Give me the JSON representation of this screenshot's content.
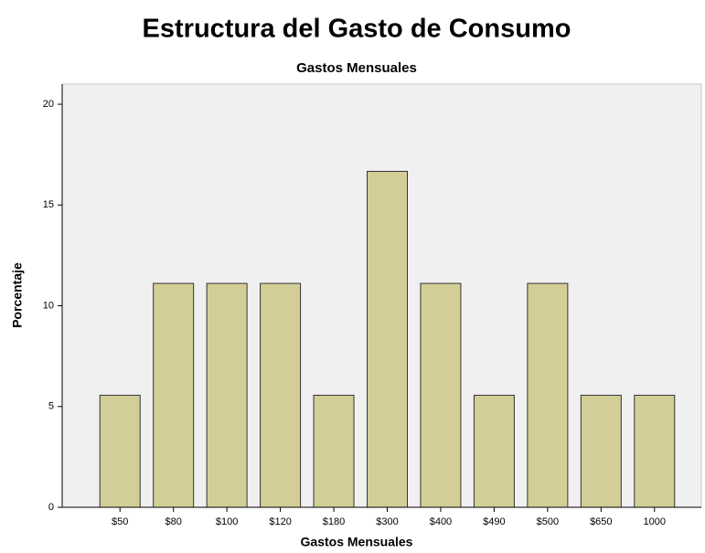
{
  "header": {
    "title": "Estructura del Gasto de Consumo"
  },
  "chart_data": {
    "type": "bar",
    "title": "Gastos Mensuales",
    "x_label": "Gastos Mensuales",
    "y_label": "Porcentaje",
    "categories": [
      "$50",
      "$80",
      "$100",
      "$120",
      "$180",
      "$300",
      "$400",
      "$490",
      "$500",
      "$650",
      "1000"
    ],
    "values": [
      5.56,
      11.11,
      11.11,
      11.11,
      5.56,
      16.67,
      11.11,
      5.56,
      11.11,
      5.56,
      5.56
    ],
    "color": "#d3ce97",
    "ylim": [
      0,
      21
    ],
    "yticks": [
      0,
      5,
      10,
      15,
      20
    ],
    "grid": false
  }
}
